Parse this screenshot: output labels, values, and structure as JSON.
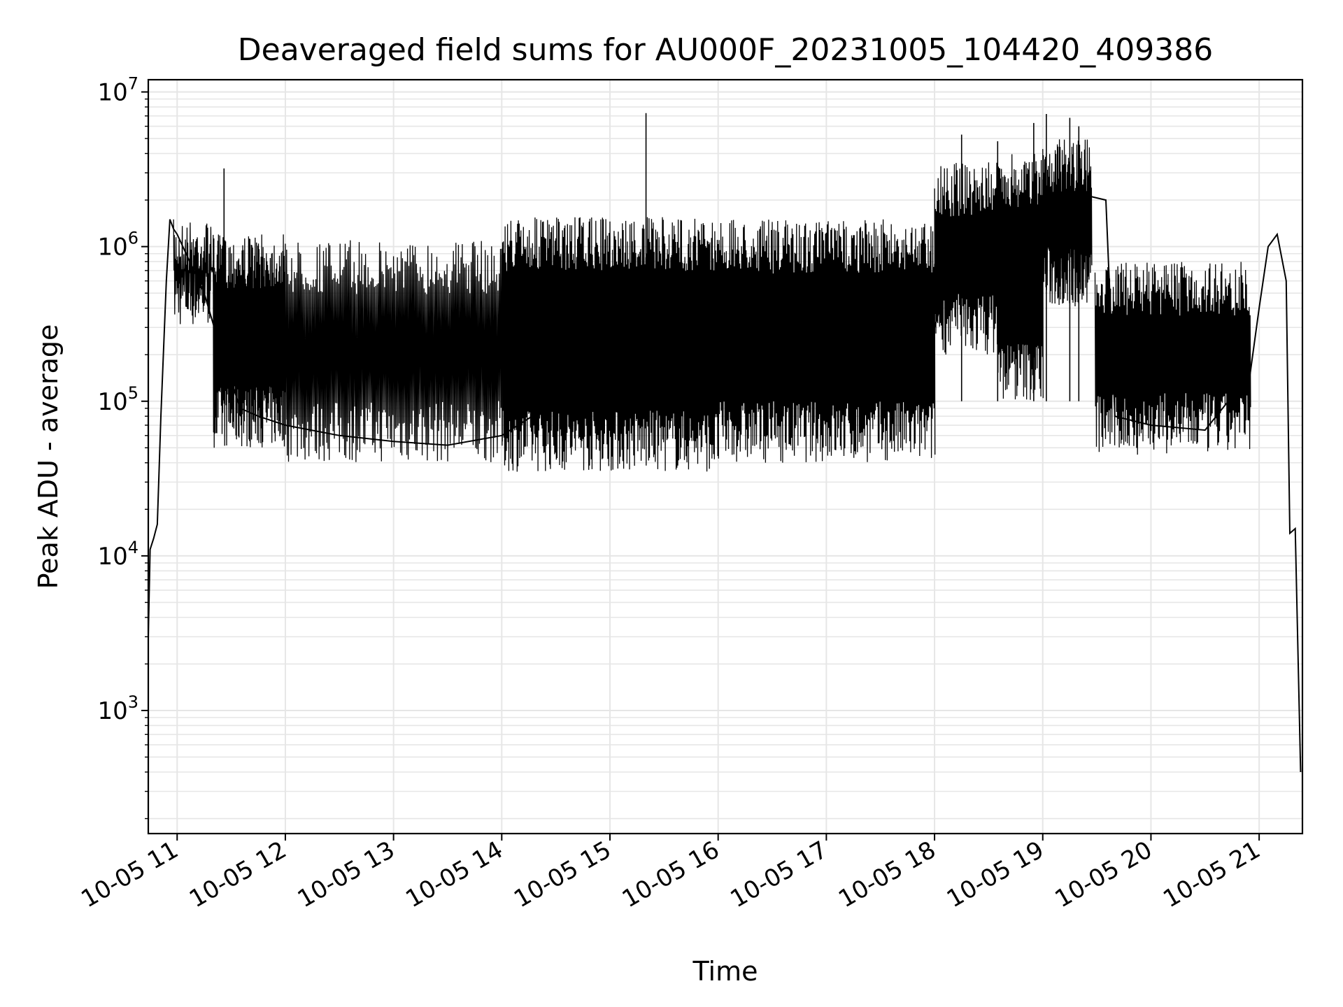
{
  "chart_data": {
    "type": "line",
    "title": "Deaveraged field sums for AU000F_20231005_104420_409386",
    "xlabel": "Time",
    "ylabel": "Peak ADU - average",
    "yscale": "log",
    "ylim": [
      160,
      12000000
    ],
    "xlim": [
      "2023-10-05 10:44",
      "2023-10-05 21:24"
    ],
    "grid": true,
    "line_color": "#000000",
    "grid_color": "#e6e6e6",
    "y_ticks": [
      {
        "value": 1000,
        "base": "10",
        "exp": "3"
      },
      {
        "value": 10000,
        "base": "10",
        "exp": "4"
      },
      {
        "value": 100000,
        "base": "10",
        "exp": "5"
      },
      {
        "value": 1000000,
        "base": "10",
        "exp": "6"
      },
      {
        "value": 10000000,
        "base": "10",
        "exp": "7"
      }
    ],
    "x_ticks": [
      {
        "value": "2023-10-05 11:00",
        "label": "10-05 11"
      },
      {
        "value": "2023-10-05 12:00",
        "label": "10-05 12"
      },
      {
        "value": "2023-10-05 13:00",
        "label": "10-05 13"
      },
      {
        "value": "2023-10-05 14:00",
        "label": "10-05 14"
      },
      {
        "value": "2023-10-05 15:00",
        "label": "10-05 15"
      },
      {
        "value": "2023-10-05 16:00",
        "label": "10-05 16"
      },
      {
        "value": "2023-10-05 17:00",
        "label": "10-05 17"
      },
      {
        "value": "2023-10-05 18:00",
        "label": "10-05 18"
      },
      {
        "value": "2023-10-05 19:00",
        "label": "10-05 19"
      },
      {
        "value": "2023-10-05 20:00",
        "label": "10-05 20"
      },
      {
        "value": "2023-10-05 21:00",
        "label": "10-05 21"
      }
    ],
    "series": [
      {
        "x": [
          "2023-10-05 10:44",
          "2023-10-05 10:45",
          "2023-10-05 10:47",
          "2023-10-05 10:49",
          "2023-10-05 10:51",
          "2023-10-05 10:54",
          "2023-10-05 10:56",
          "2023-10-05 10:58",
          "2023-10-05 11:00",
          "2023-10-05 11:05",
          "2023-10-05 11:15",
          "2023-10-05 11:25",
          "2023-10-05 11:35",
          "2023-10-05 11:45",
          "2023-10-05 12:00",
          "2023-10-05 12:30",
          "2023-10-05 13:00",
          "2023-10-05 13:30",
          "2023-10-05 14:00",
          "2023-10-05 14:30",
          "2023-10-05 15:00",
          "2023-10-05 15:30",
          "2023-10-05 16:00",
          "2023-10-05 16:30",
          "2023-10-05 17:00",
          "2023-10-05 17:30",
          "2023-10-05 18:00",
          "2023-10-05 18:10",
          "2023-10-05 18:20",
          "2023-10-05 18:40",
          "2023-10-05 19:00",
          "2023-10-05 19:20",
          "2023-10-05 19:35",
          "2023-10-05 19:40",
          "2023-10-05 20:00",
          "2023-10-05 20:30",
          "2023-10-05 20:55",
          "2023-10-05 21:00",
          "2023-10-05 21:05",
          "2023-10-05 21:10",
          "2023-10-05 21:15",
          "2023-10-05 21:17",
          "2023-10-05 21:20",
          "2023-10-05 21:23"
        ],
        "y": [
          3000,
          11000,
          13000,
          16000,
          80000,
          600000,
          1500000,
          1300000,
          1200000,
          900000,
          500000,
          200000,
          90000,
          80000,
          70000,
          60000,
          55000,
          52000,
          60000,
          100000,
          150000,
          170000,
          200000,
          210000,
          230000,
          250000,
          300000,
          800000,
          1000000,
          900000,
          1500000,
          2200000,
          2000000,
          80000,
          70000,
          65000,
          150000,
          400000,
          1000000,
          1200000,
          600000,
          14000,
          15000,
          400
        ]
      }
    ],
    "peaks": {
      "x": [
        "2023-10-05 11:26",
        "2023-10-05 15:20",
        "2023-10-05 18:15",
        "2023-10-05 18:35",
        "2023-10-05 18:55",
        "2023-10-05 19:02",
        "2023-10-05 19:15",
        "2023-10-05 19:20"
      ],
      "y": [
        3200000,
        7300000,
        5300000,
        4800000,
        6300000,
        7200000,
        6800000,
        6000000
      ]
    },
    "envelope": [
      {
        "from": "2023-10-05 10:58",
        "to": "2023-10-05 11:20",
        "lo": 300000,
        "hi": 1500000,
        "n": 50
      },
      {
        "from": "2023-10-05 11:20",
        "to": "2023-10-05 12:00",
        "lo": 50000,
        "hi": 1200000,
        "n": 110
      },
      {
        "from": "2023-10-05 12:00",
        "to": "2023-10-05 14:00",
        "lo": 40000,
        "hi": 1100000,
        "n": 170
      },
      {
        "from": "2023-10-05 14:00",
        "to": "2023-10-05 16:00",
        "lo": 35000,
        "hi": 1550000,
        "n": 260
      },
      {
        "from": "2023-10-05 16:00",
        "to": "2023-10-05 18:00",
        "lo": 40000,
        "hi": 1500000,
        "n": 240
      },
      {
        "from": "2023-10-05 18:00",
        "to": "2023-10-05 18:35",
        "lo": 200000,
        "hi": 3500000,
        "n": 70
      },
      {
        "from": "2023-10-05 18:35",
        "to": "2023-10-05 19:00",
        "lo": 100000,
        "hi": 4000000,
        "n": 60
      },
      {
        "from": "2023-10-05 19:00",
        "to": "2023-10-05 19:27",
        "lo": 400000,
        "hi": 5000000,
        "n": 70
      },
      {
        "from": "2023-10-05 19:29",
        "to": "2023-10-05 20:55",
        "lo": 45000,
        "hi": 800000,
        "n": 170
      }
    ]
  }
}
